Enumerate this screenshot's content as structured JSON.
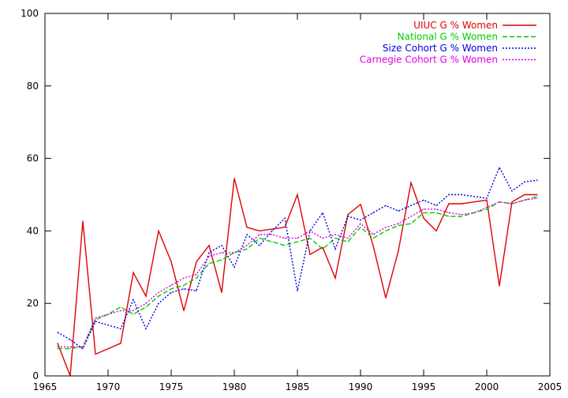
{
  "chart_data": {
    "type": "line",
    "title": "",
    "xlabel": "",
    "ylabel": "",
    "xlim": [
      1965,
      2005
    ],
    "ylim": [
      0,
      100
    ],
    "x_ticks": [
      1965,
      1970,
      1975,
      1980,
      1985,
      1990,
      1995,
      2000,
      2005
    ],
    "y_ticks": [
      0,
      20,
      40,
      60,
      80,
      100
    ],
    "grid": false,
    "legend_position": "top-right",
    "series": [
      {
        "name": "UIUC G % Women",
        "color": "#e00000",
        "dash": "solid",
        "x": [
          1966,
          1967,
          1968,
          1969,
          1970,
          1971,
          1972,
          1973,
          1974,
          1975,
          1976,
          1977,
          1978,
          1979,
          1980,
          1981,
          1982,
          1983,
          1984,
          1985,
          1986,
          1987,
          1988,
          1989,
          1990,
          1991,
          1992,
          1993,
          1994,
          1995,
          1996,
          1997,
          1998,
          1999,
          2000,
          2001,
          2002,
          2003,
          2004
        ],
        "y": [
          9,
          0,
          42.7,
          6,
          7.5,
          9,
          28.5,
          22,
          40,
          31.5,
          18,
          31.5,
          36,
          23,
          54.5,
          41,
          40,
          40.5,
          41,
          50,
          33.5,
          35.5,
          27,
          44.5,
          47.3,
          36,
          21.5,
          34.5,
          53.3,
          43.5,
          40,
          47.5,
          47.5,
          48,
          48.5,
          24.8,
          48,
          50,
          50
        ]
      },
      {
        "name": "National G % Women",
        "color": "#00cc00",
        "dash": "dashed",
        "x": [
          1966,
          1967,
          1968,
          1969,
          1970,
          1971,
          1972,
          1973,
          1974,
          1975,
          1976,
          1977,
          1978,
          1979,
          1980,
          1981,
          1982,
          1983,
          1984,
          1985,
          1986,
          1987,
          1988,
          1989,
          1990,
          1991,
          1992,
          1993,
          1994,
          1995,
          1996,
          1997,
          1998,
          1999,
          2000,
          2001,
          2002,
          2003,
          2004
        ],
        "y": [
          7.5,
          7.5,
          8,
          15.5,
          17,
          19,
          17,
          19,
          22,
          24,
          25,
          27,
          31,
          32,
          34,
          35,
          38,
          37,
          36,
          37,
          38,
          35,
          38,
          37,
          41,
          38,
          40,
          41.5,
          42,
          45,
          45,
          44,
          44,
          45,
          46,
          48,
          47.5,
          48.5,
          49.5
        ]
      },
      {
        "name": "Size Cohort G % Women",
        "color": "#0000e0",
        "dash": "dotted",
        "x": [
          1966,
          1967,
          1968,
          1969,
          1970,
          1971,
          1972,
          1973,
          1974,
          1975,
          1976,
          1977,
          1978,
          1979,
          1980,
          1981,
          1982,
          1983,
          1984,
          1985,
          1986,
          1987,
          1988,
          1989,
          1990,
          1991,
          1992,
          1993,
          1994,
          1995,
          1996,
          1997,
          1998,
          1999,
          2000,
          2001,
          2002,
          2003,
          2004
        ],
        "y": [
          12,
          10,
          7.5,
          15,
          14,
          13,
          21,
          13,
          20,
          23,
          24,
          23.5,
          34,
          36,
          30,
          39,
          36,
          40,
          43.5,
          23.5,
          40,
          45,
          35,
          44,
          43,
          45,
          47,
          45.5,
          47,
          48.5,
          47,
          50,
          50,
          49.5,
          49,
          57.5,
          51,
          53.5,
          54
        ]
      },
      {
        "name": "Carnegie Cohort G % Women",
        "color": "#e000e0",
        "dash": "dotted",
        "x": [
          1966,
          1967,
          1968,
          1969,
          1970,
          1971,
          1972,
          1973,
          1974,
          1975,
          1976,
          1977,
          1978,
          1979,
          1980,
          1981,
          1982,
          1983,
          1984,
          1985,
          1986,
          1987,
          1988,
          1989,
          1990,
          1991,
          1992,
          1993,
          1994,
          1995,
          1996,
          1997,
          1998,
          1999,
          2000,
          2001,
          2002,
          2003,
          2004
        ],
        "y": [
          8,
          8,
          8,
          16,
          17,
          18,
          18,
          20,
          23,
          25,
          27,
          28,
          33,
          34,
          34,
          36,
          39,
          39,
          38,
          38,
          40,
          38,
          39,
          38,
          42,
          39,
          41,
          42,
          44,
          46,
          46,
          45,
          44.5,
          45,
          46.5,
          48,
          47.5,
          48.5,
          49
        ]
      }
    ]
  }
}
